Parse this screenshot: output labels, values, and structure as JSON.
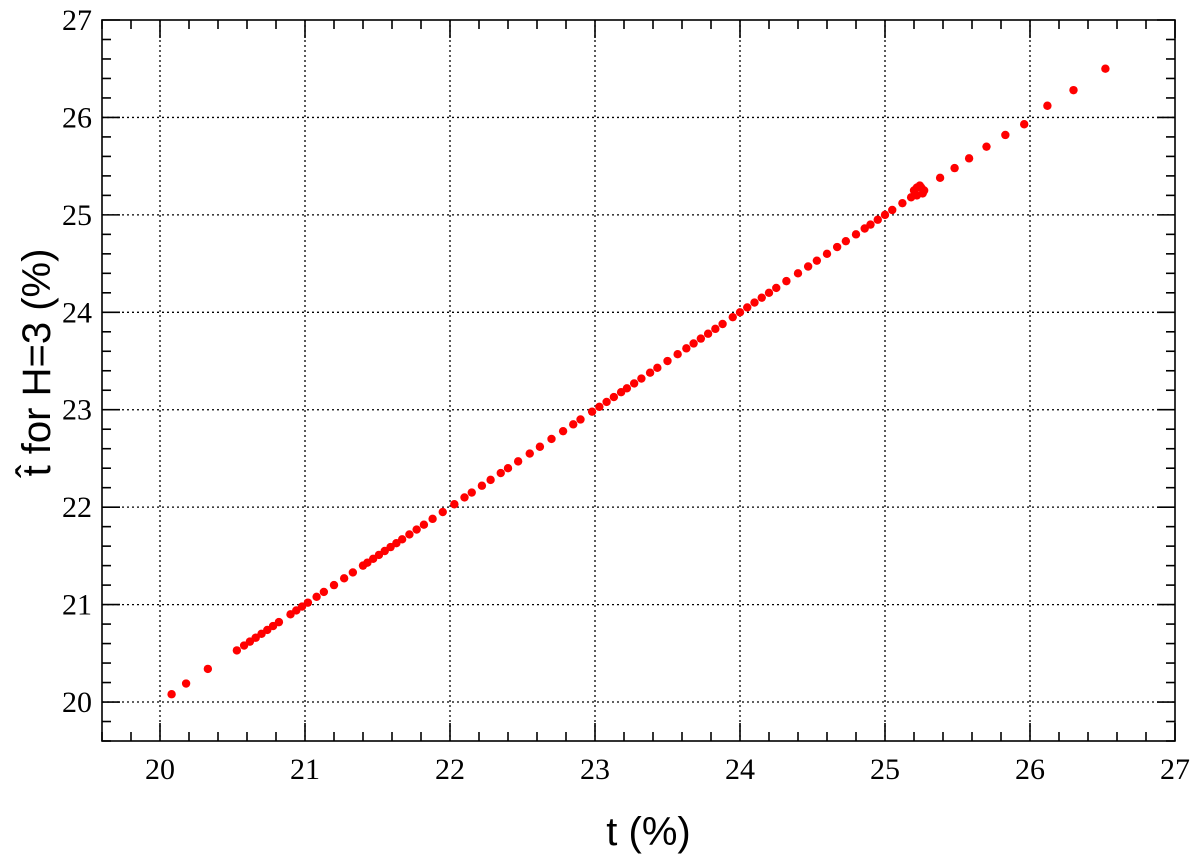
{
  "chart_data": {
    "type": "scatter",
    "xlabel": "t (%)",
    "ylabel": "t̂ for H=3 (%)",
    "xlim": [
      19.6,
      27.0
    ],
    "ylim": [
      19.6,
      27.0
    ],
    "x_ticks": [
      "20",
      "21",
      "22",
      "23",
      "24",
      "25",
      "26",
      "27"
    ],
    "y_ticks": [
      "20",
      "21",
      "22",
      "23",
      "24",
      "25",
      "26",
      "27"
    ],
    "grid": true,
    "marker_color": "#ff0000",
    "series": [
      {
        "x": [
          20.08,
          20.18,
          20.33,
          20.53,
          20.58,
          20.62,
          20.66,
          20.7,
          20.74,
          20.78,
          20.82,
          20.9,
          20.94,
          20.98,
          21.02,
          21.08,
          21.13,
          21.2,
          21.27,
          21.33,
          21.4,
          21.43,
          21.47,
          21.51,
          21.55,
          21.59,
          21.63,
          21.67,
          21.72,
          21.77,
          21.82,
          21.88,
          21.95,
          22.03,
          22.1,
          22.15,
          22.22,
          22.28,
          22.35,
          22.4,
          22.47,
          22.55,
          22.62,
          22.7,
          22.78,
          22.85,
          22.9,
          22.98,
          23.03,
          23.08,
          23.13,
          23.18,
          23.22,
          23.27,
          23.32,
          23.38,
          23.43,
          23.5,
          23.57,
          23.63,
          23.68,
          23.73,
          23.78,
          23.83,
          23.88,
          23.95,
          24.0,
          24.05,
          24.1,
          24.15,
          24.2,
          24.25,
          24.32,
          24.4,
          24.47,
          24.53,
          24.6,
          24.67,
          24.73,
          24.8,
          24.86,
          24.9,
          24.95,
          25.0,
          25.05,
          25.12,
          25.18,
          25.2,
          25.22,
          25.24,
          25.26,
          25.22,
          25.25,
          25.27,
          25.38,
          25.48,
          25.58,
          25.7,
          25.83,
          25.96,
          26.12,
          26.3,
          26.52
        ],
        "y": [
          20.08,
          20.19,
          20.34,
          20.53,
          20.58,
          20.62,
          20.66,
          20.7,
          20.74,
          20.78,
          20.82,
          20.9,
          20.94,
          20.98,
          21.02,
          21.08,
          21.13,
          21.2,
          21.27,
          21.33,
          21.4,
          21.43,
          21.47,
          21.51,
          21.55,
          21.59,
          21.63,
          21.67,
          21.72,
          21.77,
          21.82,
          21.88,
          21.95,
          22.03,
          22.1,
          22.15,
          22.22,
          22.28,
          22.35,
          22.4,
          22.47,
          22.55,
          22.62,
          22.7,
          22.78,
          22.85,
          22.9,
          22.98,
          23.03,
          23.08,
          23.13,
          23.18,
          23.22,
          23.27,
          23.32,
          23.38,
          23.43,
          23.5,
          23.57,
          23.63,
          23.68,
          23.73,
          23.78,
          23.83,
          23.88,
          23.95,
          24.0,
          24.05,
          24.1,
          24.15,
          24.2,
          24.25,
          24.32,
          24.4,
          24.47,
          24.53,
          24.6,
          24.67,
          24.73,
          24.8,
          24.86,
          24.9,
          24.95,
          25.0,
          25.05,
          25.12,
          25.18,
          25.25,
          25.28,
          25.3,
          25.22,
          25.2,
          25.28,
          25.25,
          25.38,
          25.48,
          25.58,
          25.7,
          25.82,
          25.93,
          26.12,
          26.28,
          26.5
        ]
      }
    ]
  }
}
